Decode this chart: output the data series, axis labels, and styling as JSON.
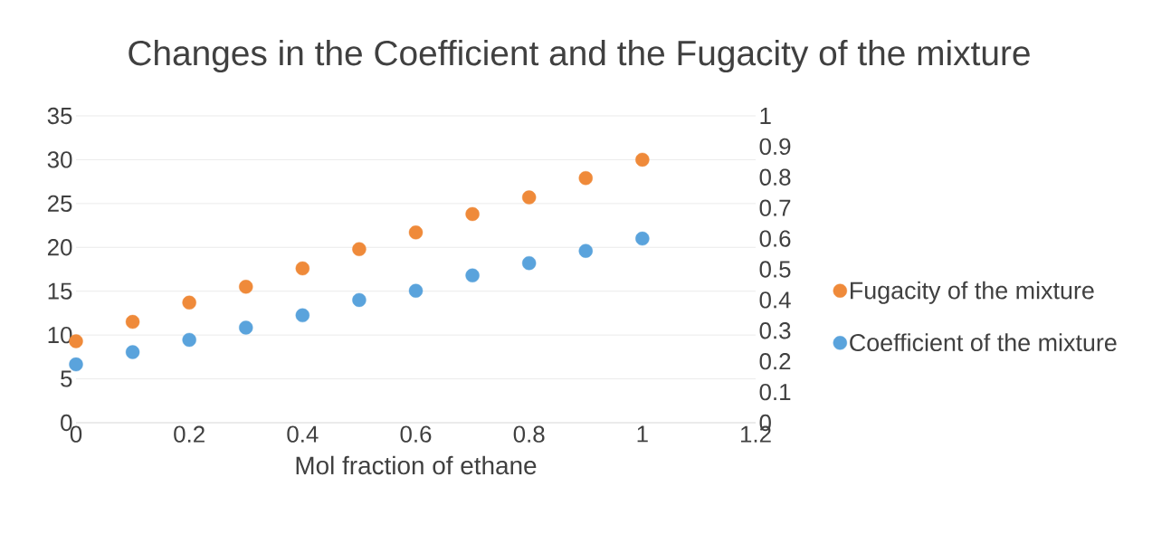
{
  "chart_data": {
    "type": "scatter",
    "title": "Changes in the Coefficient and the Fugacity of the mixture",
    "xlabel": "Mol fraction of ethane",
    "x": [
      0,
      0.1,
      0.2,
      0.3,
      0.4,
      0.5,
      0.6,
      0.7,
      0.8,
      0.9,
      1
    ],
    "series": [
      {
        "name": "Fugacity of the mixture",
        "color": "#ef8a3a",
        "values": [
          9.3,
          11.5,
          13.7,
          15.5,
          17.6,
          19.8,
          21.7,
          23.8,
          25.7,
          27.9,
          30.0
        ]
      },
      {
        "name": "Coefficient of the mixture",
        "color": "#5aa3dc",
        "axis": "y2",
        "values": [
          0.19,
          0.23,
          0.27,
          0.31,
          0.35,
          0.4,
          0.43,
          0.48,
          0.52,
          0.56,
          0.6
        ]
      }
    ],
    "xlim": [
      0,
      1.2
    ],
    "xticks": [
      0,
      0.2,
      0.4,
      0.6,
      0.8,
      1,
      1.2
    ],
    "ylim": [
      0,
      35
    ],
    "yticks": [
      0,
      5,
      10,
      15,
      20,
      25,
      30,
      35
    ],
    "y2lim": [
      0,
      1
    ],
    "y2ticks": [
      0,
      0.1,
      0.2,
      0.3,
      0.4,
      0.5,
      0.6,
      0.7,
      0.8,
      0.9,
      1
    ],
    "grid": "y",
    "legend": "right",
    "marker": "circle"
  }
}
